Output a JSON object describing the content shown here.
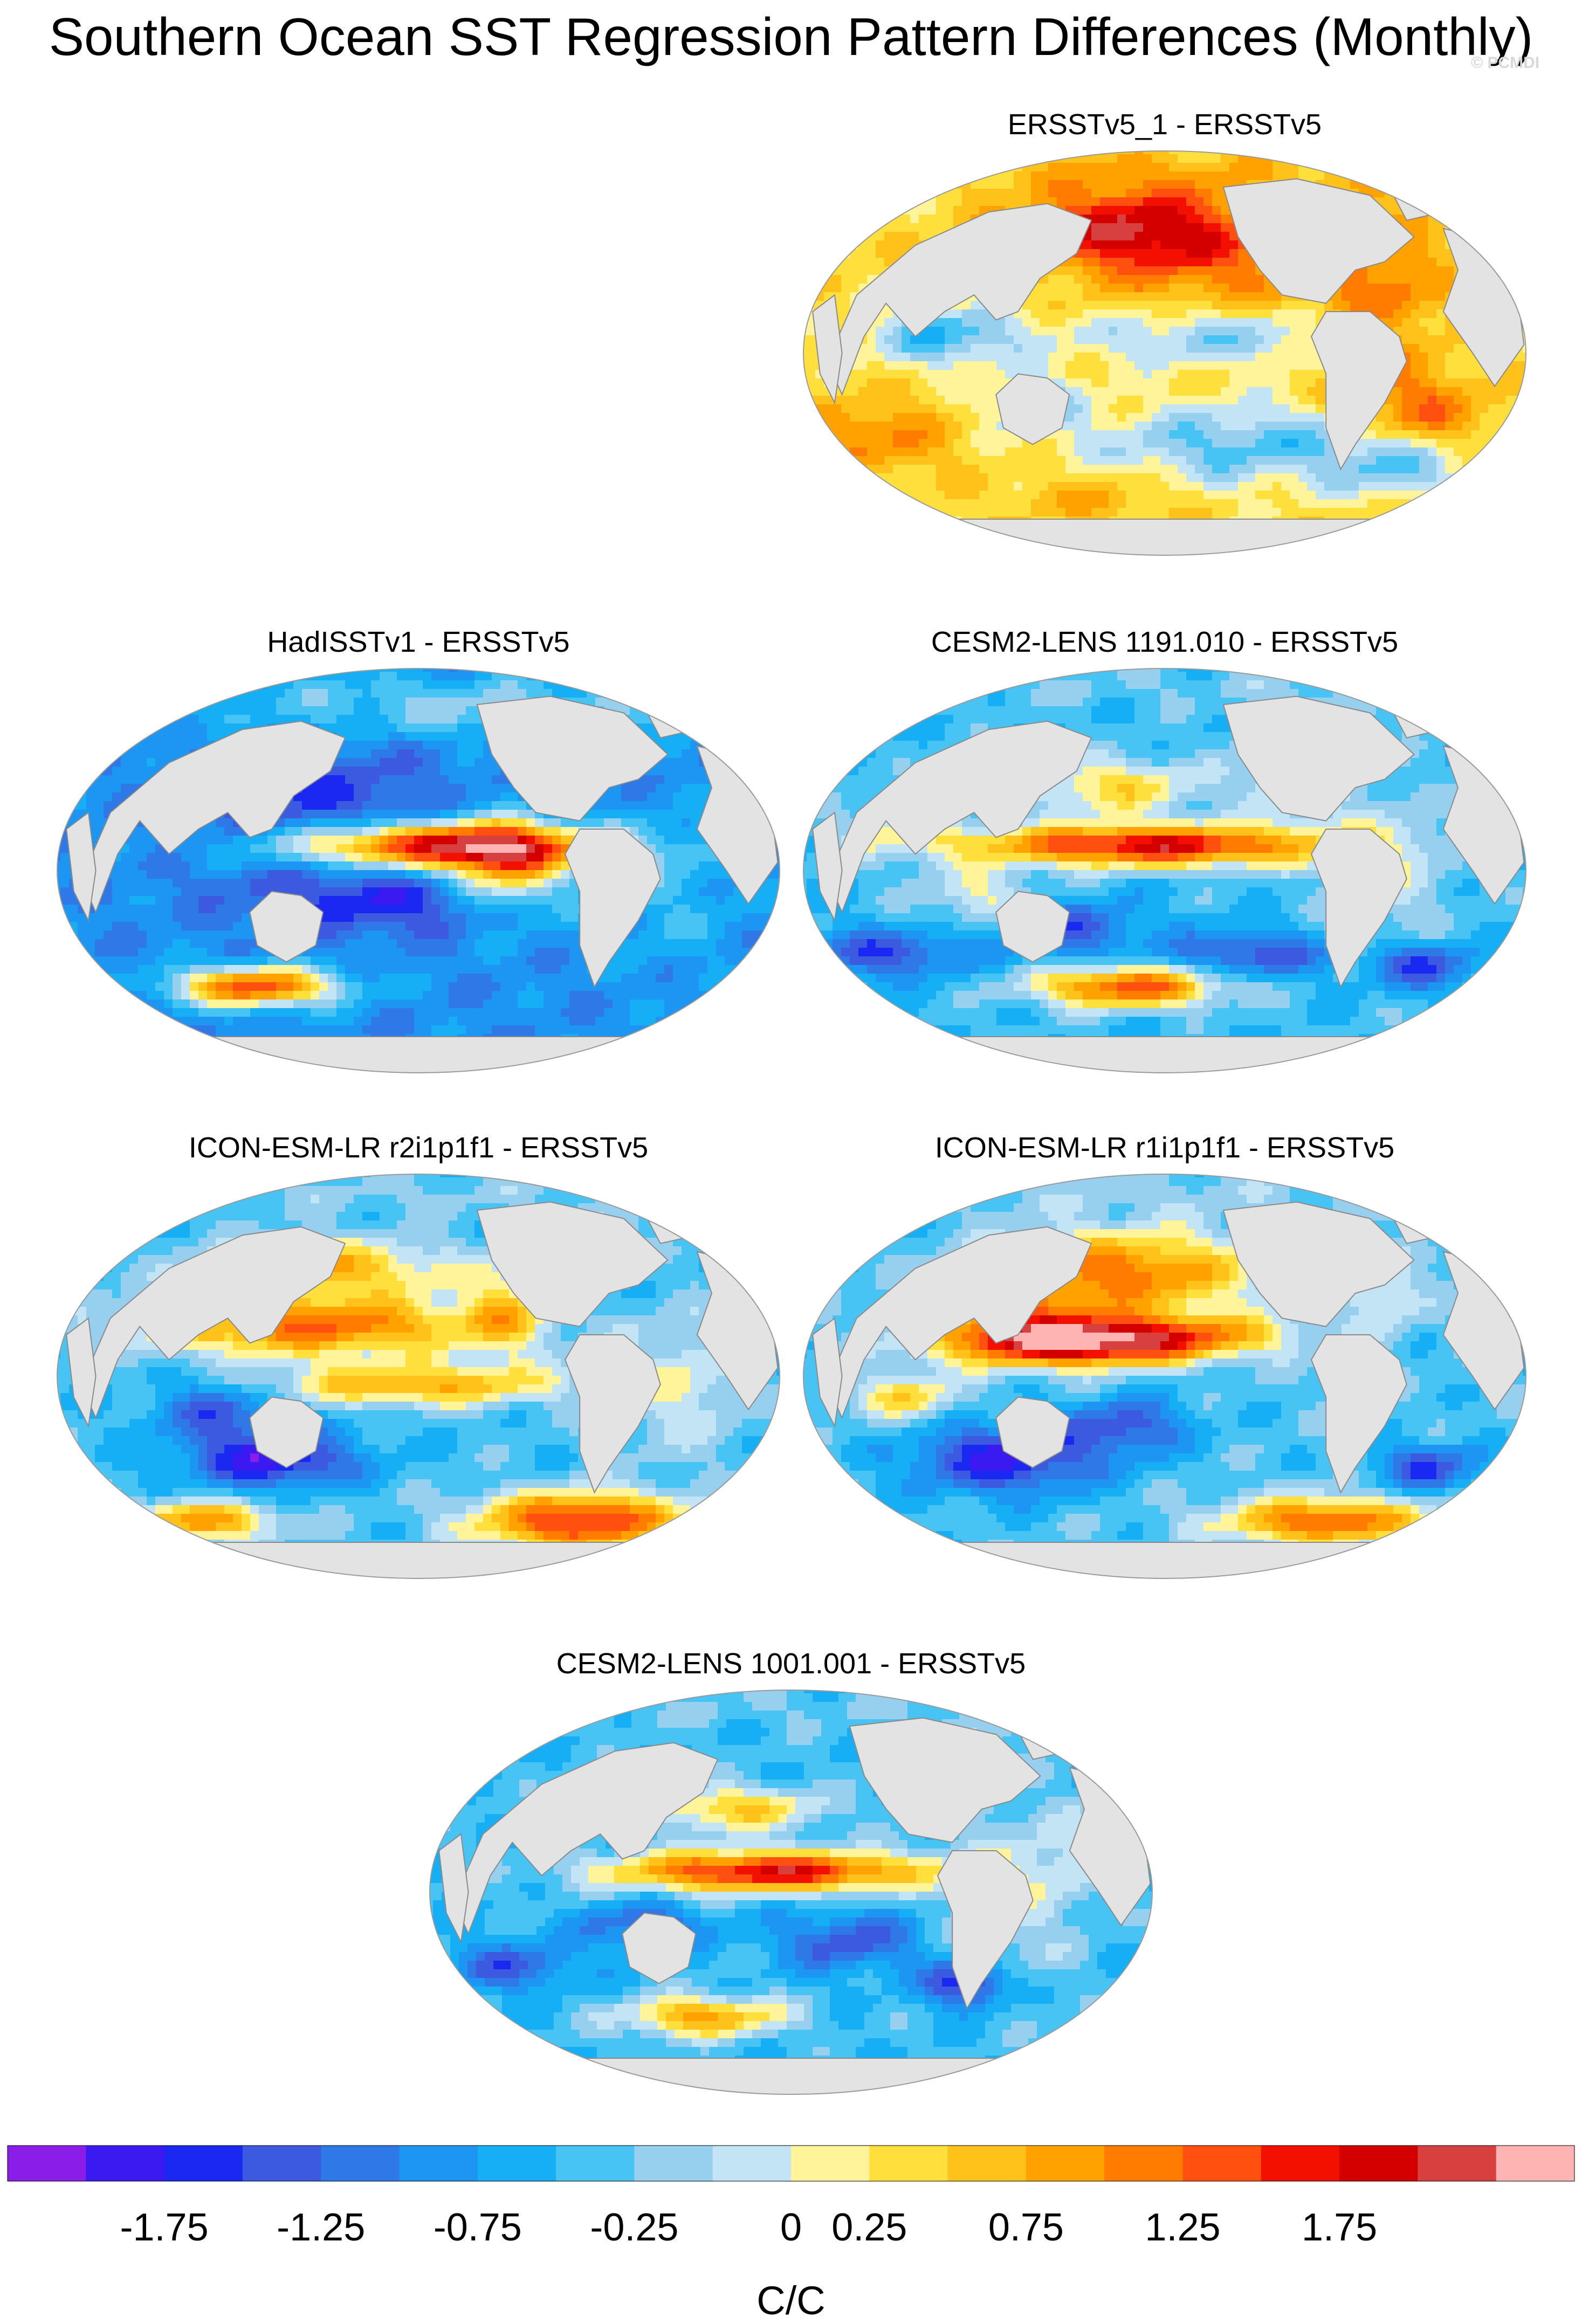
{
  "title": "Southern Ocean SST Regression Pattern Differences (Monthly)",
  "watermark": "© PCMDI",
  "panels": [
    {
      "id": "p1",
      "title": "ERSSTv5_1 - ERSSTv5"
    },
    {
      "id": "p2",
      "title": "HadISSTv1 - ERSSTv5"
    },
    {
      "id": "p3",
      "title": "CESM2-LENS 1191.010 - ERSSTv5"
    },
    {
      "id": "p4",
      "title": "ICON-ESM-LR r2i1p1f1 - ERSSTv5"
    },
    {
      "id": "p5",
      "title": "ICON-ESM-LR r1i1p1f1 - ERSSTv5"
    },
    {
      "id": "p6",
      "title": "CESM2-LENS 1001.001 - ERSSTv5"
    }
  ],
  "colorbar": {
    "unit": "C/C",
    "tick_labels": [
      "-1.75",
      "-1.25",
      "-0.75",
      "-0.25",
      "0",
      "0.25",
      "0.75",
      "1.25",
      "1.75"
    ],
    "colors": [
      "#8a1ee8",
      "#3a1af0",
      "#1a28f2",
      "#3c5ae0",
      "#2e78e8",
      "#1c96f2",
      "#16aef5",
      "#48c4f4",
      "#96d0ee",
      "#c2e4f4",
      "#fff49a",
      "#ffdf3c",
      "#ffc21a",
      "#ffa200",
      "#ff7c00",
      "#ff5010",
      "#f41000",
      "#d40000",
      "#d84040",
      "#ffb4b4"
    ]
  }
}
